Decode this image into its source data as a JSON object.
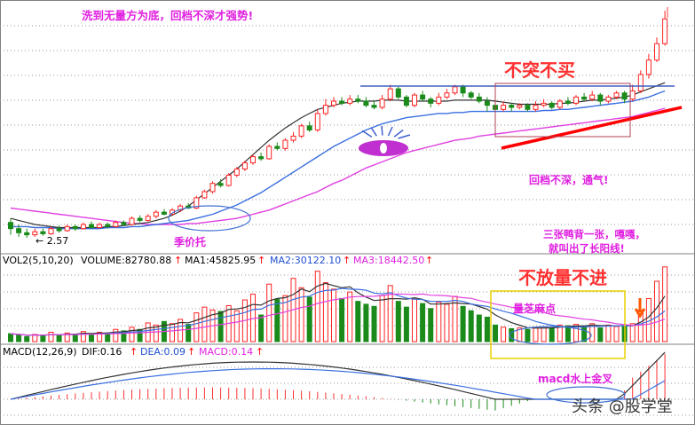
{
  "chart_data": [
    {
      "type": "candlestick",
      "panel": "price",
      "annotations": {
        "top_left": "洗到无量方为底，回档不深才强势!",
        "resist": "不突不买",
        "pullback": "回档不深，通气!",
        "three_candles": "三张鸭背一张，嘎嘎，",
        "long_yang": "就叫出了长阳线!",
        "support": "季价托",
        "low_label": "← 2.57"
      },
      "colors": {
        "up": "#ff2222",
        "down": "#1a8a1a",
        "ma_black": "#333333",
        "ma_blue": "#3b6fe0",
        "ma_magenta": "#e040e0",
        "trend": "#ff0000",
        "resist_line": "#4060c0"
      },
      "candles": [
        [
          2.72,
          2.66,
          2.76,
          2.6
        ],
        [
          2.66,
          2.62,
          2.7,
          2.58
        ],
        [
          2.62,
          2.6,
          2.66,
          2.57
        ],
        [
          2.6,
          2.63,
          2.66,
          2.58
        ],
        [
          2.63,
          2.61,
          2.66,
          2.59
        ],
        [
          2.61,
          2.66,
          2.68,
          2.6
        ],
        [
          2.66,
          2.64,
          2.69,
          2.62
        ],
        [
          2.64,
          2.68,
          2.7,
          2.63
        ],
        [
          2.68,
          2.66,
          2.7,
          2.64
        ],
        [
          2.66,
          2.7,
          2.72,
          2.65
        ],
        [
          2.7,
          2.67,
          2.73,
          2.66
        ],
        [
          2.67,
          2.7,
          2.72,
          2.66
        ],
        [
          2.7,
          2.68,
          2.72,
          2.66
        ],
        [
          2.68,
          2.72,
          2.74,
          2.67
        ],
        [
          2.72,
          2.7,
          2.74,
          2.69
        ],
        [
          2.7,
          2.76,
          2.78,
          2.69
        ],
        [
          2.76,
          2.74,
          2.79,
          2.72
        ],
        [
          2.74,
          2.78,
          2.8,
          2.73
        ],
        [
          2.78,
          2.82,
          2.84,
          2.76
        ],
        [
          2.82,
          2.8,
          2.85,
          2.79
        ],
        [
          2.8,
          2.84,
          2.86,
          2.79
        ],
        [
          2.84,
          2.88,
          2.9,
          2.82
        ],
        [
          2.88,
          2.86,
          2.91,
          2.85
        ],
        [
          2.86,
          2.96,
          2.98,
          2.85
        ],
        [
          2.96,
          3.02,
          3.04,
          2.95
        ],
        [
          3.02,
          3.1,
          3.12,
          3.0
        ],
        [
          3.1,
          3.08,
          3.14,
          3.06
        ],
        [
          3.08,
          3.18,
          3.2,
          3.07
        ],
        [
          3.18,
          3.24,
          3.26,
          3.16
        ],
        [
          3.24,
          3.3,
          3.32,
          3.22
        ],
        [
          3.3,
          3.36,
          3.38,
          3.28
        ],
        [
          3.36,
          3.34,
          3.4,
          3.32
        ],
        [
          3.34,
          3.46,
          3.48,
          3.33
        ],
        [
          3.46,
          3.44,
          3.5,
          3.42
        ],
        [
          3.44,
          3.52,
          3.54,
          3.42
        ],
        [
          3.52,
          3.56,
          3.6,
          3.5
        ],
        [
          3.56,
          3.66,
          3.68,
          3.54
        ],
        [
          3.66,
          3.62,
          3.7,
          3.6
        ],
        [
          3.62,
          3.78,
          3.82,
          3.6
        ],
        [
          3.78,
          3.86,
          3.92,
          3.76
        ],
        [
          3.86,
          3.9,
          3.94,
          3.84
        ],
        [
          3.9,
          3.88,
          3.94,
          3.86
        ],
        [
          3.88,
          3.92,
          3.96,
          3.86
        ],
        [
          3.92,
          3.9,
          3.96,
          3.88
        ],
        [
          3.9,
          3.86,
          3.94,
          3.84
        ],
        [
          3.86,
          3.84,
          3.9,
          3.82
        ],
        [
          3.84,
          3.92,
          3.96,
          3.82
        ],
        [
          3.92,
          4.02,
          4.06,
          3.9
        ],
        [
          4.02,
          3.94,
          4.04,
          3.92
        ],
        [
          3.94,
          3.86,
          3.96,
          3.84
        ],
        [
          3.86,
          3.96,
          3.98,
          3.84
        ],
        [
          3.96,
          3.92,
          4.0,
          3.9
        ],
        [
          3.92,
          3.88,
          3.94,
          3.84
        ],
        [
          3.88,
          3.94,
          3.98,
          3.86
        ],
        [
          3.94,
          3.98,
          4.02,
          3.92
        ],
        [
          3.98,
          4.04,
          4.06,
          3.96
        ],
        [
          4.04,
          3.98,
          4.06,
          3.94
        ],
        [
          3.98,
          3.94,
          4.0,
          3.92
        ],
        [
          3.94,
          3.9,
          3.98,
          3.88
        ],
        [
          3.9,
          3.86,
          3.94,
          3.8
        ],
        [
          3.86,
          3.82,
          3.9,
          3.78
        ],
        [
          3.82,
          3.86,
          3.9,
          3.8
        ],
        [
          3.86,
          3.84,
          3.88,
          3.8
        ],
        [
          3.84,
          3.86,
          3.88,
          3.82
        ],
        [
          3.86,
          3.82,
          3.88,
          3.8
        ],
        [
          3.82,
          3.86,
          3.9,
          3.8
        ],
        [
          3.86,
          3.88,
          3.92,
          3.84
        ],
        [
          3.88,
          3.84,
          3.9,
          3.82
        ],
        [
          3.84,
          3.9,
          3.92,
          3.82
        ],
        [
          3.9,
          3.88,
          3.94,
          3.86
        ],
        [
          3.88,
          3.94,
          3.96,
          3.86
        ],
        [
          3.94,
          3.92,
          3.98,
          3.9
        ],
        [
          3.92,
          3.96,
          4.0,
          3.9
        ],
        [
          3.96,
          3.9,
          3.98,
          3.86
        ],
        [
          3.9,
          3.94,
          3.96,
          3.88
        ],
        [
          3.94,
          3.98,
          4.0,
          3.92
        ],
        [
          3.98,
          3.92,
          4.0,
          3.88
        ],
        [
          3.92,
          4.0,
          4.06,
          3.9
        ],
        [
          4.0,
          4.16,
          4.2,
          3.98
        ],
        [
          4.16,
          4.3,
          4.36,
          4.12
        ],
        [
          4.3,
          4.46,
          4.52,
          4.28
        ],
        [
          4.46,
          4.7,
          4.78,
          4.44
        ]
      ],
      "ma": {
        "ma_black": [
          2.76,
          2.74,
          2.72,
          2.7,
          2.69,
          2.68,
          2.67,
          2.67,
          2.67,
          2.67,
          2.67,
          2.67,
          2.68,
          2.68,
          2.69,
          2.7,
          2.71,
          2.72,
          2.74,
          2.76,
          2.79,
          2.83,
          2.88,
          2.94,
          3.0,
          3.06,
          3.12,
          3.18,
          3.24,
          3.31,
          3.38,
          3.45,
          3.52,
          3.58,
          3.64,
          3.69,
          3.74,
          3.78,
          3.82,
          3.84,
          3.86,
          3.88,
          3.89,
          3.9,
          3.9,
          3.9,
          3.91,
          3.91,
          3.91,
          3.9,
          3.9,
          3.9,
          3.9,
          3.9,
          3.9,
          3.91,
          3.91,
          3.91,
          3.91,
          3.91,
          3.9,
          3.89,
          3.88,
          3.87,
          3.87,
          3.87,
          3.87,
          3.87,
          3.88,
          3.88,
          3.89,
          3.9,
          3.91,
          3.91,
          3.92,
          3.93,
          3.94,
          3.96,
          3.99,
          4.02,
          4.05,
          4.08
        ],
        "ma_blue": [
          2.68,
          2.68,
          2.68,
          2.67,
          2.67,
          2.67,
          2.66,
          2.66,
          2.66,
          2.66,
          2.66,
          2.66,
          2.67,
          2.67,
          2.67,
          2.68,
          2.68,
          2.69,
          2.7,
          2.71,
          2.72,
          2.73,
          2.74,
          2.76,
          2.78,
          2.8,
          2.83,
          2.86,
          2.89,
          2.93,
          2.97,
          3.01,
          3.06,
          3.11,
          3.16,
          3.21,
          3.26,
          3.31,
          3.36,
          3.41,
          3.46,
          3.5,
          3.54,
          3.58,
          3.62,
          3.65,
          3.68,
          3.7,
          3.72,
          3.74,
          3.75,
          3.76,
          3.77,
          3.78,
          3.78,
          3.79,
          3.79,
          3.8,
          3.8,
          3.8,
          3.8,
          3.8,
          3.8,
          3.8,
          3.8,
          3.8,
          3.81,
          3.81,
          3.82,
          3.82,
          3.83,
          3.84,
          3.85,
          3.86,
          3.87,
          3.88,
          3.89,
          3.9,
          3.92,
          3.94,
          3.97,
          4.0
        ],
        "ma_magenta": [
          2.86,
          2.85,
          2.84,
          2.83,
          2.82,
          2.81,
          2.8,
          2.79,
          2.78,
          2.77,
          2.76,
          2.75,
          2.74,
          2.73,
          2.72,
          2.71,
          2.71,
          2.7,
          2.7,
          2.7,
          2.7,
          2.7,
          2.71,
          2.71,
          2.72,
          2.73,
          2.74,
          2.75,
          2.76,
          2.78,
          2.8,
          2.82,
          2.84,
          2.87,
          2.9,
          2.93,
          2.96,
          2.99,
          3.02,
          3.06,
          3.1,
          3.13,
          3.17,
          3.21,
          3.25,
          3.28,
          3.31,
          3.34,
          3.37,
          3.4,
          3.42,
          3.44,
          3.46,
          3.48,
          3.5,
          3.52,
          3.53,
          3.54,
          3.56,
          3.57,
          3.58,
          3.59,
          3.6,
          3.61,
          3.62,
          3.63,
          3.64,
          3.65,
          3.66,
          3.67,
          3.68,
          3.69,
          3.7,
          3.71,
          3.72,
          3.73,
          3.74,
          3.75,
          3.77,
          3.79,
          3.81,
          3.83
        ]
      }
    },
    {
      "type": "bar",
      "panel": "volume",
      "header": {
        "name": "VOL2(5,10,20)",
        "volume": "VOLUME:82780.88",
        "ma1": "MA1:45825.95",
        "ma2": "MA2:30122.10",
        "ma3": "MA3:18442.50",
        "arrow": "↑"
      },
      "annotations": {
        "no_volume": "不放量不进",
        "sesame": "量芝麻点"
      },
      "values": [
        22,
        18,
        14,
        20,
        16,
        26,
        18,
        24,
        20,
        28,
        22,
        26,
        24,
        34,
        30,
        40,
        34,
        52,
        46,
        56,
        50,
        62,
        48,
        80,
        96,
        88,
        84,
        100,
        86,
        116,
        132,
        74,
        160,
        118,
        128,
        176,
        150,
        124,
        196,
        164,
        146,
        120,
        138,
        112,
        104,
        98,
        128,
        156,
        112,
        96,
        118,
        106,
        92,
        110,
        104,
        126,
        98,
        86,
        74,
        68,
        46,
        40,
        36,
        38,
        34,
        40,
        42,
        38,
        46,
        44,
        48,
        42,
        50,
        38,
        46,
        42,
        44,
        50,
        88,
        120,
        168,
        208
      ]
    },
    {
      "type": "line",
      "panel": "macd",
      "header": {
        "name": "MACD(12,26,9)",
        "dif": "DIF:0.16",
        "dea": "DEA:0.09",
        "macd": "MACD:0.14",
        "arrow": "↑"
      },
      "annotations": {
        "golden_cross": "macd水上金叉"
      },
      "watermark": "头条 @股学堂"
    }
  ]
}
